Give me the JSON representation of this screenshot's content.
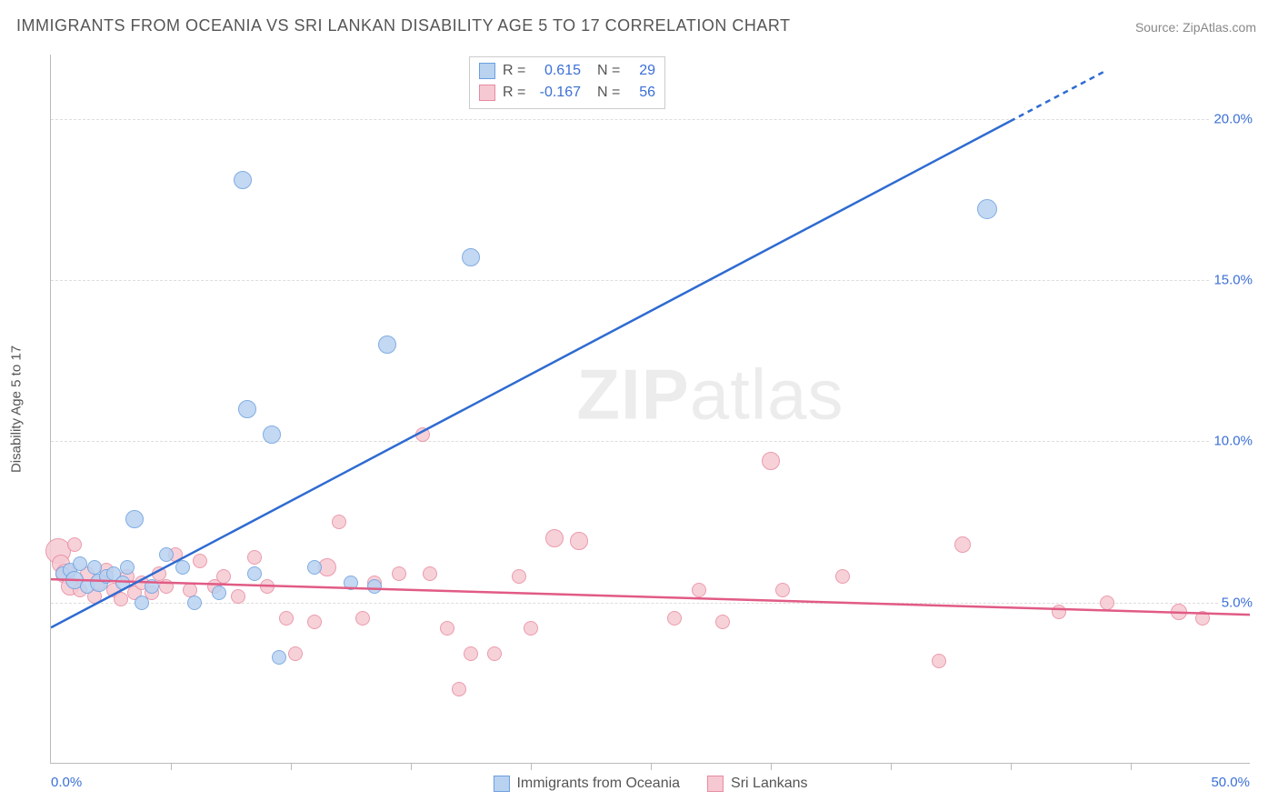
{
  "title": "IMMIGRANTS FROM OCEANIA VS SRI LANKAN DISABILITY AGE 5 TO 17 CORRELATION CHART",
  "source_prefix": "Source: ",
  "source_name": "ZipAtlas.com",
  "watermark_bold": "ZIP",
  "watermark_rest": "atlas",
  "yaxis_title": "Disability Age 5 to 17",
  "chart": {
    "type": "scatter",
    "background_color": "#ffffff",
    "grid_color": "#dddddd",
    "axis_color": "#bbbbbb",
    "xlim": [
      0,
      50
    ],
    "ylim": [
      0,
      22
    ],
    "yticks": [
      5,
      10,
      15,
      20
    ],
    "ytick_labels": [
      "5.0%",
      "10.0%",
      "15.0%",
      "20.0%"
    ],
    "xtick_positions": [
      5,
      10,
      15,
      20,
      25,
      30,
      35,
      40,
      45
    ],
    "xlim_labels": {
      "min": "0.0%",
      "max": "50.0%"
    },
    "label_color": "#3b6fd6",
    "label_fontsize": 15
  },
  "series": {
    "blue": {
      "name": "Immigrants from Oceania",
      "fill_color": "#b9d2f0",
      "stroke_color": "#6b9fe0",
      "line_color": "#2e6bd1",
      "R": "0.615",
      "N": "29",
      "trend": {
        "x1": 0,
        "y1": 4.2,
        "x2": 44,
        "y2": 21.5,
        "dash_from_x": 40
      },
      "points": [
        {
          "x": 0.5,
          "y": 5.9,
          "r": 8
        },
        {
          "x": 0.8,
          "y": 6.0,
          "r": 8
        },
        {
          "x": 1.0,
          "y": 5.7,
          "r": 10
        },
        {
          "x": 1.2,
          "y": 6.2,
          "r": 8
        },
        {
          "x": 1.5,
          "y": 5.5,
          "r": 8
        },
        {
          "x": 1.8,
          "y": 6.1,
          "r": 8
        },
        {
          "x": 2.0,
          "y": 5.6,
          "r": 10
        },
        {
          "x": 2.3,
          "y": 5.8,
          "r": 8
        },
        {
          "x": 2.6,
          "y": 5.9,
          "r": 8
        },
        {
          "x": 3.0,
          "y": 5.6,
          "r": 8
        },
        {
          "x": 3.2,
          "y": 6.1,
          "r": 8
        },
        {
          "x": 3.5,
          "y": 7.6,
          "r": 10
        },
        {
          "x": 3.8,
          "y": 5.0,
          "r": 8
        },
        {
          "x": 4.2,
          "y": 5.5,
          "r": 8
        },
        {
          "x": 4.8,
          "y": 6.5,
          "r": 8
        },
        {
          "x": 5.5,
          "y": 6.1,
          "r": 8
        },
        {
          "x": 6.0,
          "y": 5.0,
          "r": 8
        },
        {
          "x": 7.0,
          "y": 5.3,
          "r": 8
        },
        {
          "x": 8.0,
          "y": 18.1,
          "r": 10
        },
        {
          "x": 8.2,
          "y": 11.0,
          "r": 10
        },
        {
          "x": 8.5,
          "y": 5.9,
          "r": 8
        },
        {
          "x": 9.2,
          "y": 10.2,
          "r": 10
        },
        {
          "x": 9.5,
          "y": 3.3,
          "r": 8
        },
        {
          "x": 11.0,
          "y": 6.1,
          "r": 8
        },
        {
          "x": 12.5,
          "y": 5.6,
          "r": 8
        },
        {
          "x": 13.5,
          "y": 5.5,
          "r": 8
        },
        {
          "x": 14.0,
          "y": 13.0,
          "r": 10
        },
        {
          "x": 17.5,
          "y": 15.7,
          "r": 10
        },
        {
          "x": 39.0,
          "y": 17.2,
          "r": 11
        }
      ]
    },
    "pink": {
      "name": "Sri Lankans",
      "fill_color": "#f6c9d2",
      "stroke_color": "#e88aa0",
      "line_color": "#e15b85",
      "R": "-0.167",
      "N": "56",
      "trend": {
        "x1": 0,
        "y1": 5.7,
        "x2": 50,
        "y2": 4.6
      },
      "points": [
        {
          "x": 0.3,
          "y": 6.6,
          "r": 14
        },
        {
          "x": 0.4,
          "y": 6.2,
          "r": 10
        },
        {
          "x": 0.6,
          "y": 5.9,
          "r": 11
        },
        {
          "x": 0.8,
          "y": 5.5,
          "r": 10
        },
        {
          "x": 1.0,
          "y": 6.8,
          "r": 8
        },
        {
          "x": 1.2,
          "y": 5.4,
          "r": 8
        },
        {
          "x": 1.5,
          "y": 5.9,
          "r": 8
        },
        {
          "x": 1.8,
          "y": 5.2,
          "r": 8
        },
        {
          "x": 2.0,
          "y": 5.6,
          "r": 8
        },
        {
          "x": 2.3,
          "y": 6.0,
          "r": 8
        },
        {
          "x": 2.6,
          "y": 5.4,
          "r": 8
        },
        {
          "x": 2.9,
          "y": 5.1,
          "r": 8
        },
        {
          "x": 3.2,
          "y": 5.8,
          "r": 8
        },
        {
          "x": 3.5,
          "y": 5.3,
          "r": 8
        },
        {
          "x": 3.8,
          "y": 5.6,
          "r": 8
        },
        {
          "x": 4.2,
          "y": 5.3,
          "r": 8
        },
        {
          "x": 4.5,
          "y": 5.9,
          "r": 8
        },
        {
          "x": 4.8,
          "y": 5.5,
          "r": 8
        },
        {
          "x": 5.2,
          "y": 6.5,
          "r": 8
        },
        {
          "x": 5.8,
          "y": 5.4,
          "r": 8
        },
        {
          "x": 6.2,
          "y": 6.3,
          "r": 8
        },
        {
          "x": 6.8,
          "y": 5.5,
          "r": 8
        },
        {
          "x": 7.2,
          "y": 5.8,
          "r": 8
        },
        {
          "x": 7.8,
          "y": 5.2,
          "r": 8
        },
        {
          "x": 8.5,
          "y": 6.4,
          "r": 8
        },
        {
          "x": 9.0,
          "y": 5.5,
          "r": 8
        },
        {
          "x": 9.8,
          "y": 4.5,
          "r": 8
        },
        {
          "x": 10.2,
          "y": 3.4,
          "r": 8
        },
        {
          "x": 11.0,
          "y": 4.4,
          "r": 8
        },
        {
          "x": 11.5,
          "y": 6.1,
          "r": 10
        },
        {
          "x": 12.0,
          "y": 7.5,
          "r": 8
        },
        {
          "x": 13.0,
          "y": 4.5,
          "r": 8
        },
        {
          "x": 13.5,
          "y": 5.6,
          "r": 8
        },
        {
          "x": 14.5,
          "y": 5.9,
          "r": 8
        },
        {
          "x": 15.5,
          "y": 10.2,
          "r": 8
        },
        {
          "x": 15.8,
          "y": 5.9,
          "r": 8
        },
        {
          "x": 16.5,
          "y": 4.2,
          "r": 8
        },
        {
          "x": 17.0,
          "y": 2.3,
          "r": 8
        },
        {
          "x": 17.5,
          "y": 3.4,
          "r": 8
        },
        {
          "x": 18.5,
          "y": 3.4,
          "r": 8
        },
        {
          "x": 19.5,
          "y": 5.8,
          "r": 8
        },
        {
          "x": 20.0,
          "y": 4.2,
          "r": 8
        },
        {
          "x": 21.0,
          "y": 7.0,
          "r": 10
        },
        {
          "x": 22.0,
          "y": 6.9,
          "r": 10
        },
        {
          "x": 26.0,
          "y": 4.5,
          "r": 8
        },
        {
          "x": 27.0,
          "y": 5.4,
          "r": 8
        },
        {
          "x": 28.0,
          "y": 4.4,
          "r": 8
        },
        {
          "x": 30.0,
          "y": 9.4,
          "r": 10
        },
        {
          "x": 30.5,
          "y": 5.4,
          "r": 8
        },
        {
          "x": 33.0,
          "y": 5.8,
          "r": 8
        },
        {
          "x": 37.0,
          "y": 3.2,
          "r": 8
        },
        {
          "x": 38.0,
          "y": 6.8,
          "r": 9
        },
        {
          "x": 42.0,
          "y": 4.7,
          "r": 8
        },
        {
          "x": 44.0,
          "y": 5.0,
          "r": 8
        },
        {
          "x": 47.0,
          "y": 4.7,
          "r": 9
        },
        {
          "x": 48.0,
          "y": 4.5,
          "r": 8
        }
      ]
    }
  },
  "stats_box": {
    "R_label": "R  =",
    "N_label": "N  ="
  }
}
